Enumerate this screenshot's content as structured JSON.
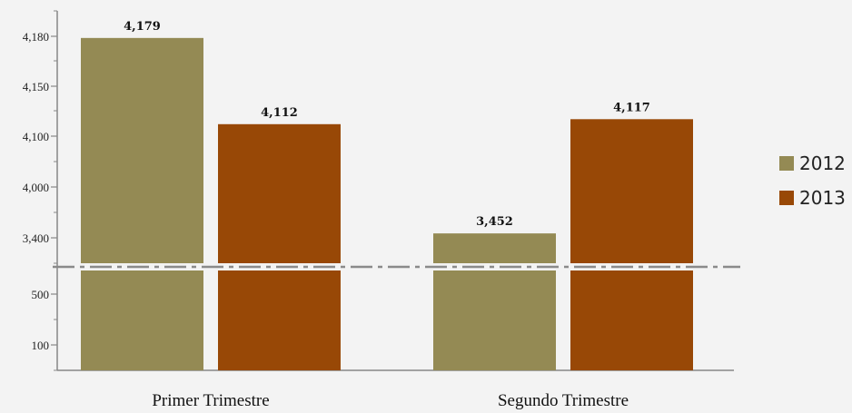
{
  "chart_data": {
    "type": "bar",
    "categories": [
      "Primer Trimestre",
      "Segundo Trimestre"
    ],
    "series": [
      {
        "name": "2012",
        "values": [
          4179,
          3452
        ],
        "labels": [
          "4,179",
          "3,452"
        ],
        "color": "#948a54"
      },
      {
        "name": "2013",
        "values": [
          4112,
          4117
        ],
        "labels": [
          "4,112",
          "4,117"
        ],
        "color": "#984806"
      }
    ],
    "axis_break": true,
    "y_ticks": [
      {
        "value": 100,
        "label": "100"
      },
      {
        "value": 500,
        "label": "500"
      },
      {
        "value": 3400,
        "label": "3,400"
      },
      {
        "value": 4000,
        "label": "4,000"
      },
      {
        "value": 4100,
        "label": "4,100"
      },
      {
        "value": 4150,
        "label": "4,150"
      },
      {
        "value": 4180,
        "label": "4,180"
      }
    ],
    "legend_position": "right",
    "title": "",
    "xlabel": "",
    "ylabel": ""
  }
}
